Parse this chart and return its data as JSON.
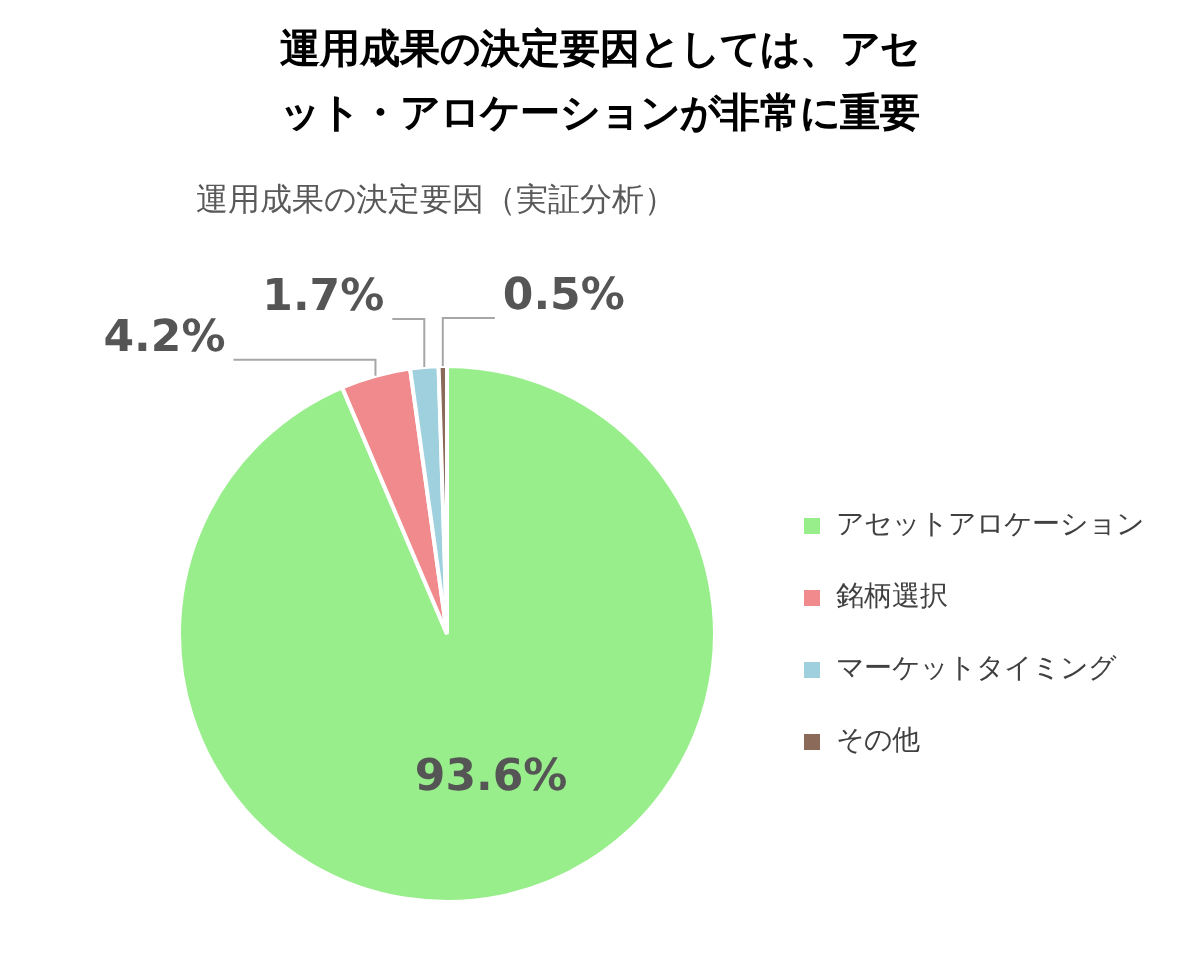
{
  "chart_data": {
    "type": "pie",
    "title": "運用成果の決定要因としては、アセット・アロケーションが非常に重要",
    "subtitle": "運用成果の決定要因（実証分析）",
    "categories": [
      "アセットアロケーション",
      "銘柄選択",
      "マーケットタイミング",
      "その他"
    ],
    "values": [
      93.6,
      4.2,
      1.7,
      0.5
    ],
    "value_labels": [
      "93.6%",
      "4.2%",
      "1.7%",
      "0.5%"
    ],
    "colors": [
      "#99ee8c",
      "#f08a8c",
      "#9fd0de",
      "#8c6a5a"
    ],
    "legend": "right"
  }
}
